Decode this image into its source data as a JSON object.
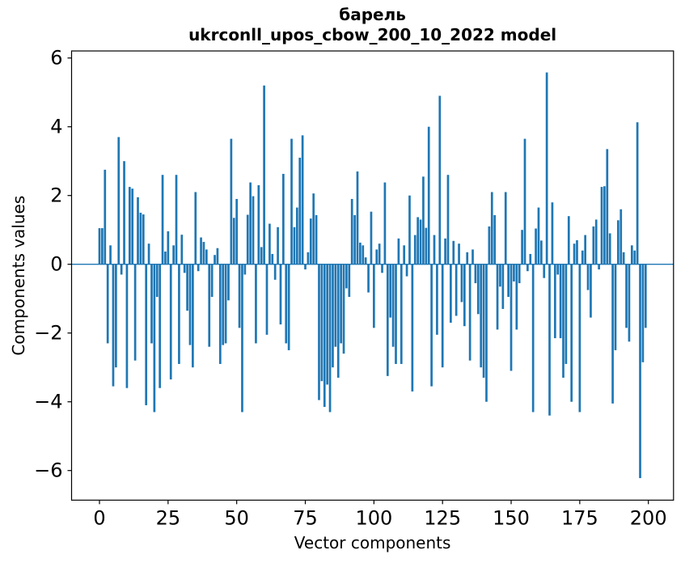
{
  "figure": {
    "title_line1": "барель",
    "title_line2": "ukrconll_upos_cbow_200_10_2022 model",
    "xlabel": "Vector components",
    "ylabel": "Components values"
  },
  "style": {
    "bar_color": "#1f77b4",
    "text_color": "#000000",
    "background": "#ffffff",
    "spine_color": "#000000"
  },
  "chart_data": {
    "type": "bar",
    "title": "барель",
    "subtitle": "ukrconll_upos_cbow_200_10_2022 model",
    "xlabel": "Vector components",
    "ylabel": "Components values",
    "x_start": 0,
    "x_ticks": [
      0,
      25,
      50,
      75,
      100,
      125,
      150,
      175,
      200
    ],
    "y_ticks": [
      -6,
      -4,
      -2,
      0,
      2,
      4,
      6
    ],
    "xlim": [
      -10.2,
      209.1
    ],
    "ylim": [
      -6.47,
      6.2
    ],
    "grid": false,
    "legend": false,
    "bar_color": "#1f77b4",
    "values": [
      1.05,
      1.05,
      2.75,
      -2.3,
      0.55,
      -3.55,
      -3.0,
      3.7,
      -0.3,
      3.0,
      -3.6,
      2.25,
      2.2,
      -2.8,
      1.95,
      1.5,
      1.45,
      -4.1,
      0.6,
      -2.3,
      -4.3,
      -0.95,
      -3.6,
      2.6,
      0.37,
      0.96,
      -3.35,
      0.55,
      2.6,
      -2.9,
      0.86,
      -0.25,
      -1.35,
      -2.35,
      -3.0,
      2.1,
      -0.2,
      0.78,
      0.65,
      0.43,
      -2.4,
      -0.95,
      0.27,
      0.47,
      -2.9,
      -2.35,
      -2.3,
      -1.05,
      3.65,
      1.35,
      1.9,
      -1.85,
      -4.3,
      -0.3,
      1.44,
      2.38,
      1.98,
      -2.3,
      2.3,
      0.5,
      5.2,
      -2.05,
      1.18,
      0.3,
      -0.45,
      1.08,
      -1.75,
      2.63,
      -2.3,
      -2.5,
      3.65,
      1.08,
      1.65,
      3.1,
      3.75,
      -0.15,
      0.35,
      1.33,
      2.06,
      1.43,
      -3.95,
      -3.4,
      -4.15,
      -3.5,
      -4.3,
      -3.0,
      -2.4,
      -3.3,
      -2.3,
      -2.6,
      -0.7,
      -0.95,
      1.9,
      1.43,
      2.7,
      0.63,
      0.55,
      0.2,
      -0.82,
      1.53,
      -1.85,
      0.43,
      0.6,
      -0.25,
      2.38,
      -3.25,
      -1.55,
      -2.4,
      -2.9,
      0.75,
      -2.9,
      0.55,
      -0.35,
      2.0,
      -3.7,
      0.85,
      1.37,
      1.3,
      2.55,
      1.06,
      4.0,
      -3.55,
      0.85,
      -2.05,
      4.9,
      -3.0,
      0.75,
      2.6,
      -1.7,
      0.68,
      -1.5,
      0.6,
      -1.1,
      -1.8,
      0.35,
      -2.8,
      0.43,
      -0.55,
      -1.45,
      -3.0,
      -3.3,
      -4.0,
      1.1,
      2.1,
      1.43,
      -1.9,
      -0.65,
      -1.3,
      2.1,
      -0.95,
      -3.1,
      -0.5,
      -1.9,
      -0.55,
      1.0,
      3.65,
      -0.2,
      0.3,
      -4.3,
      1.04,
      1.65,
      0.69,
      -0.4,
      5.58,
      -4.4,
      1.8,
      -2.15,
      -0.3,
      -2.15,
      -3.3,
      -2.9,
      1.4,
      -4.0,
      0.6,
      0.7,
      -4.3,
      0.4,
      0.85,
      -0.75,
      -1.55,
      1.1,
      1.3,
      -0.15,
      2.25,
      2.27,
      3.35,
      0.9,
      -4.05,
      -2.5,
      1.28,
      1.6,
      0.35,
      -1.85,
      -2.25,
      0.55,
      0.4,
      4.13,
      -6.22,
      -2.85,
      -1.85
    ]
  }
}
